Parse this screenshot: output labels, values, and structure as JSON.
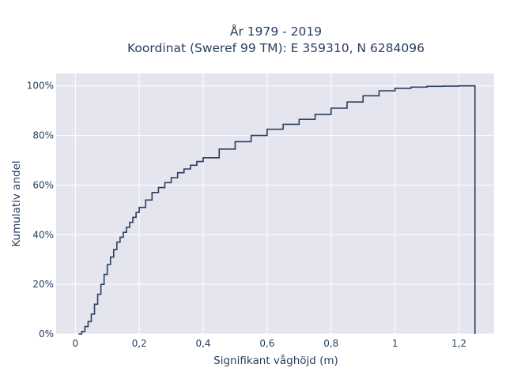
{
  "chart_data": {
    "type": "line",
    "line_shape": "step",
    "title_lines": [
      "År 1979 - 2019",
      "Koordinat (Sweref 99 TM): E 359310, N 6284096"
    ],
    "xlabel": "Signifikant våghöjd (m)",
    "ylabel": "Kumulativ andel",
    "xlim": [
      -0.06,
      1.31
    ],
    "ylim": [
      0,
      1.05
    ],
    "x_ticks": [
      0,
      0.2,
      0.4,
      0.6,
      0.8,
      1,
      1.2
    ],
    "x_tick_labels": [
      "0",
      "0,2",
      "0,4",
      "0,6",
      "0,8",
      "1",
      "1,2"
    ],
    "y_ticks": [
      0,
      0.2,
      0.4,
      0.6,
      0.8,
      1
    ],
    "y_tick_labels": [
      "0%",
      "20%",
      "40%",
      "60%",
      "80%",
      "100%"
    ],
    "grid": true,
    "colors": {
      "plot_bg": "#e5e5f0",
      "grid": "#ffffff",
      "line": "#2a3f5f",
      "text": "#2a3f5f"
    },
    "series": [
      {
        "x": [
          0.01,
          0.02,
          0.03,
          0.04,
          0.05,
          0.06,
          0.07,
          0.08,
          0.09,
          0.1,
          0.11,
          0.12,
          0.13,
          0.14,
          0.15,
          0.16,
          0.17,
          0.18,
          0.19,
          0.2,
          0.22,
          0.24,
          0.26,
          0.28,
          0.3,
          0.32,
          0.34,
          0.36,
          0.38,
          0.4,
          0.45,
          0.5,
          0.55,
          0.6,
          0.65,
          0.7,
          0.75,
          0.8,
          0.85,
          0.9,
          0.95,
          1.0,
          1.05,
          1.1,
          1.15,
          1.2,
          1.25
        ],
        "y": [
          0.0,
          0.01,
          0.03,
          0.05,
          0.08,
          0.12,
          0.16,
          0.2,
          0.24,
          0.28,
          0.31,
          0.34,
          0.37,
          0.39,
          0.41,
          0.43,
          0.45,
          0.47,
          0.49,
          0.51,
          0.54,
          0.57,
          0.59,
          0.61,
          0.63,
          0.65,
          0.665,
          0.68,
          0.695,
          0.71,
          0.745,
          0.775,
          0.8,
          0.825,
          0.845,
          0.865,
          0.885,
          0.91,
          0.935,
          0.96,
          0.98,
          0.99,
          0.995,
          0.998,
          0.999,
          1.0,
          1.0
        ]
      }
    ]
  }
}
